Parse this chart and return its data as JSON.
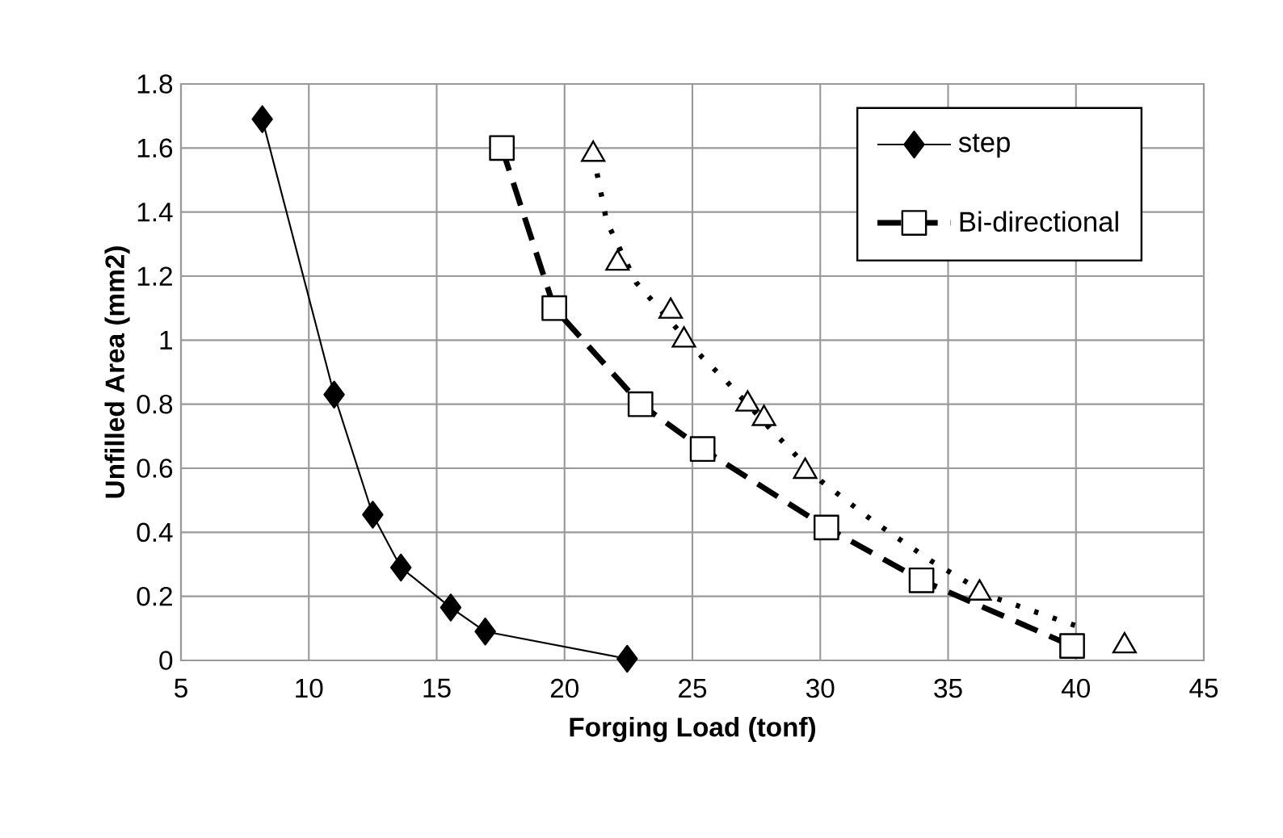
{
  "chart_data": {
    "type": "line",
    "xlabel": "Forging Load (tonf)",
    "ylabel": "Unfilled Area (mm2)",
    "xlim": [
      5,
      45
    ],
    "ylim": [
      0,
      1.8
    ],
    "xticks": [
      5,
      10,
      15,
      20,
      25,
      30,
      35,
      40,
      45
    ],
    "yticks": [
      0,
      0.2,
      0.4,
      0.6,
      0.8,
      1,
      1.2,
      1.4,
      1.6,
      1.8
    ],
    "grid": true,
    "legend": "top right",
    "series": [
      {
        "name": "step",
        "color": "#000000",
        "marker": "diamond",
        "line_style": "solid",
        "x": [
          8.18,
          10.99,
          12.5,
          13.6,
          15.55,
          16.9,
          22.45
        ],
        "values": [
          1.69,
          0.83,
          0.455,
          0.29,
          0.165,
          0.09,
          0.005
        ]
      },
      {
        "name": "Bi-directional",
        "color": "#000000",
        "marker": "square",
        "line_style": "dashed",
        "x": [
          17.55,
          19.6,
          22.97,
          25.4,
          30.24,
          33.96,
          39.85
        ],
        "values": [
          1.6,
          1.1,
          0.8,
          0.66,
          0.415,
          0.25,
          0.045
        ]
      },
      {
        "type": "scatter",
        "color": "#000000",
        "marker": "triangle",
        "x": [
          21.12,
          22.07,
          24.15,
          24.67,
          27.16,
          27.8,
          29.41,
          36.23,
          41.9
        ],
        "values": [
          1.58,
          1.24,
          1.09,
          1.0,
          0.8,
          0.755,
          0.59,
          0.21,
          0.045
        ]
      },
      {
        "type": "line",
        "color": "#000000",
        "marker": "none",
        "line_style": "dotted",
        "x": [
          21.12,
          21.4,
          21.65,
          22.8,
          25.4,
          26.35,
          28.2,
          30.03,
          32.15,
          34.35,
          36.65,
          39.2,
          40.45
        ],
        "values": [
          1.58,
          1.47,
          1.37,
          1.18,
          0.945,
          0.87,
          0.71,
          0.56,
          0.43,
          0.31,
          0.2,
          0.13,
          0.096
        ]
      }
    ]
  }
}
